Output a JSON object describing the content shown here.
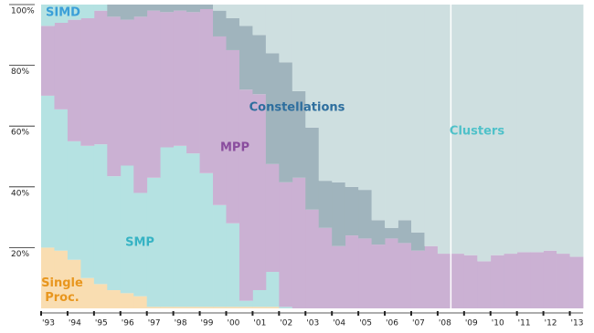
{
  "chart_data": {
    "type": "stacked-step-area",
    "x": [
      1993,
      1993.5,
      1994,
      1994.5,
      1995,
      1995.5,
      1996,
      1996.5,
      1997,
      1997.5,
      1998,
      1998.5,
      1999,
      1999.5,
      2000,
      2000.5,
      2001,
      2001.5,
      2002,
      2002.5,
      2003,
      2003.5,
      2004,
      2004.5,
      2005,
      2005.5,
      2006,
      2006.5,
      2007,
      2007.5,
      2008,
      2008.5,
      2009,
      2009.5,
      2010,
      2010.5,
      2011,
      2011.5,
      2012,
      2012.5,
      2013
    ],
    "series": [
      {
        "name": "Single Proc.",
        "color": "#f9ddb1",
        "label_color": "#e8961e",
        "values": [
          20,
          19,
          16,
          10,
          8,
          6,
          5,
          4,
          0.5,
          0.5,
          0.5,
          0.5,
          0.5,
          0.5,
          0.5,
          0.5,
          0.5,
          0.5,
          0,
          0,
          0,
          0,
          0,
          0,
          0,
          0,
          0,
          0,
          0,
          0,
          0,
          0,
          0,
          0,
          0,
          0,
          0,
          0,
          0,
          0,
          0
        ]
      },
      {
        "name": "SMP",
        "color": "#b5e2e2",
        "label_color": "#36b3c4",
        "values": [
          50,
          46.5,
          39,
          43.5,
          46,
          37.5,
          42,
          34,
          42.5,
          52.5,
          53,
          50.5,
          44,
          33.5,
          27.5,
          2,
          5.5,
          11.5,
          0.5,
          0,
          0,
          0,
          0,
          0,
          0,
          0,
          0,
          0,
          0,
          0,
          0,
          0,
          0,
          0,
          0,
          0,
          0,
          0,
          0,
          0,
          0
        ]
      },
      {
        "name": "MPP",
        "color": "#cbb1d3",
        "label_color": "#8a4d9e",
        "values": [
          23,
          28.5,
          40,
          42,
          44,
          52.5,
          48,
          58,
          55,
          44.5,
          44.5,
          46.5,
          54,
          55.5,
          57,
          69.5,
          64.5,
          35.5,
          41,
          43,
          32.5,
          26.5,
          20.5,
          24,
          23,
          21,
          23,
          21.5,
          19,
          20.5,
          18,
          18,
          17.5,
          15.5,
          17.5,
          18,
          18.5,
          18.5,
          19,
          18,
          17
        ]
      },
      {
        "name": "SIMD",
        "color": "#b5e2e2",
        "label_color": "#3a9fd8",
        "values": [
          7,
          6,
          5,
          4.5,
          2,
          0,
          0,
          0,
          0,
          0,
          0,
          0,
          0,
          0,
          0,
          0,
          0,
          0,
          0,
          0,
          0,
          0,
          0,
          0,
          0,
          0,
          0,
          0,
          0,
          0,
          0,
          0,
          0,
          0,
          0,
          0,
          0,
          0,
          0,
          0,
          0
        ]
      },
      {
        "name": "Constellations",
        "color": "#a0b4bd",
        "label_color": "#2d6e9e",
        "values": [
          0,
          0,
          0,
          0,
          0,
          4,
          5,
          4,
          2,
          2.5,
          2,
          2.5,
          1.5,
          8.5,
          10.5,
          21,
          19.5,
          36.5,
          39.5,
          28.5,
          27,
          15.5,
          21,
          16,
          16,
          8,
          3.5,
          7.5,
          6,
          0,
          0,
          0,
          0,
          0,
          0,
          0,
          0,
          0,
          0,
          0,
          0
        ]
      },
      {
        "name": "Clusters",
        "color": "#cedfe0",
        "label_color": "#4fc1c9",
        "values": [
          0,
          0,
          0,
          0,
          0,
          0,
          0,
          0,
          0,
          0,
          0,
          0,
          0,
          2,
          4.5,
          7,
          10,
          16,
          19,
          28.5,
          40.5,
          58,
          58.5,
          60,
          61,
          71,
          73.5,
          71,
          75,
          79.5,
          82,
          82,
          82.5,
          84.5,
          82.5,
          82,
          81.5,
          81.5,
          81,
          82,
          83
        ]
      }
    ],
    "marker_x": 2008.5,
    "xlim": [
      1993,
      2013.5
    ],
    "xticks": [
      {
        "value": 1993,
        "label": "'93"
      },
      {
        "value": 1994,
        "label": "'94"
      },
      {
        "value": 1995,
        "label": "'95"
      },
      {
        "value": 1996,
        "label": "'96"
      },
      {
        "value": 1997,
        "label": "'97"
      },
      {
        "value": 1998,
        "label": "'98"
      },
      {
        "value": 1999,
        "label": "'99"
      },
      {
        "value": 2000,
        "label": "'00"
      },
      {
        "value": 2001,
        "label": "'01"
      },
      {
        "value": 2002,
        "label": "'02"
      },
      {
        "value": 2003,
        "label": "'03"
      },
      {
        "value": 2004,
        "label": "'04"
      },
      {
        "value": 2005,
        "label": "'05"
      },
      {
        "value": 2006,
        "label": "'06"
      },
      {
        "value": 2007,
        "label": "'07"
      },
      {
        "value": 2008,
        "label": "'08"
      },
      {
        "value": 2009,
        "label": "'09"
      },
      {
        "value": 2010,
        "label": "'10"
      },
      {
        "value": 2011,
        "label": "'11"
      },
      {
        "value": 2012,
        "label": "'12"
      },
      {
        "value": 2013,
        "label": "'13"
      }
    ],
    "ylim": [
      0,
      100
    ],
    "yticks": [
      {
        "value": 20,
        "label": "20%"
      },
      {
        "value": 40,
        "label": "40%"
      },
      {
        "value": 60,
        "label": "60%"
      },
      {
        "value": 80,
        "label": "80%"
      },
      {
        "value": 100,
        "label": "100%"
      }
    ]
  }
}
